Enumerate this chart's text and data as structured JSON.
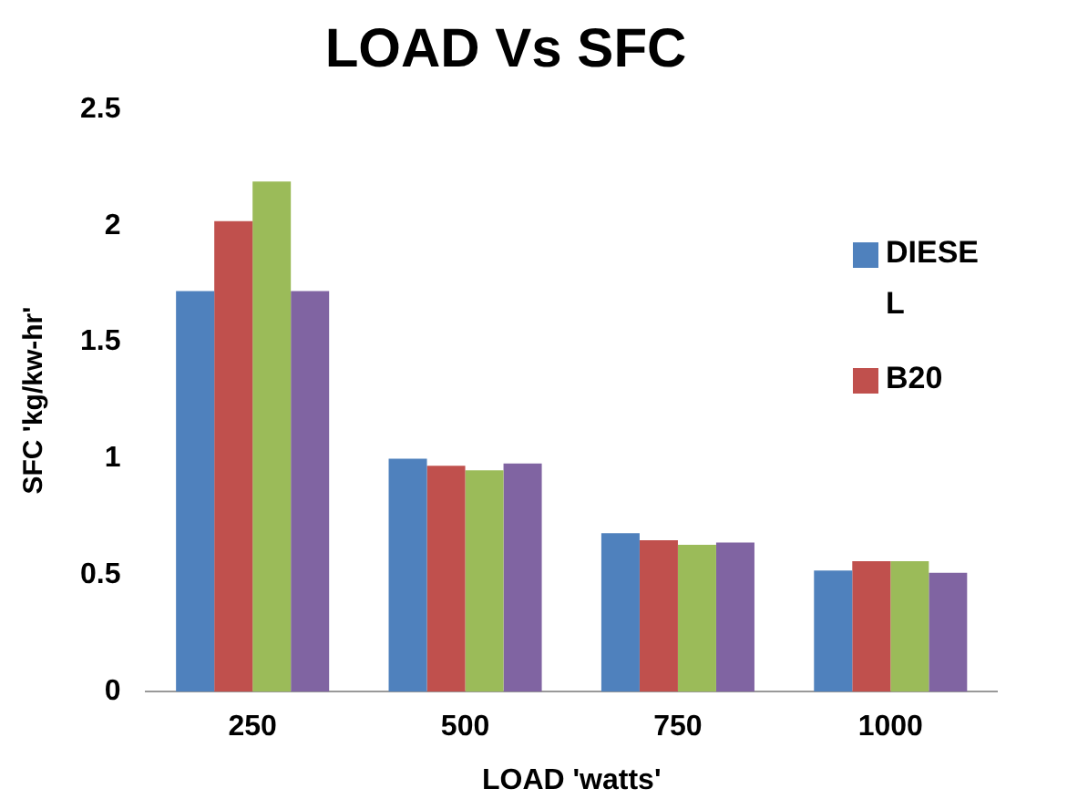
{
  "chart_data": {
    "type": "bar",
    "title": "LOAD Vs SFC",
    "xlabel": "LOAD 'watts'",
    "ylabel": "SFC 'kg/kw-hr'",
    "categories": [
      "250",
      "500",
      "750",
      "1000"
    ],
    "series": [
      {
        "name": "DIESEL",
        "color": "#4f81bd",
        "values": [
          1.72,
          1.0,
          0.68,
          0.52
        ]
      },
      {
        "name": "B20",
        "color": "#c0504d",
        "values": [
          2.02,
          0.97,
          0.65,
          0.56
        ]
      },
      {
        "color": "#9bbb59",
        "values": [
          2.19,
          0.95,
          0.63,
          0.56
        ]
      },
      {
        "color": "#8064a2",
        "values": [
          1.72,
          0.98,
          0.64,
          0.51
        ]
      }
    ],
    "ylim": [
      0,
      2.5
    ],
    "yticks": [
      0,
      0.5,
      1,
      1.5,
      2,
      2.5
    ],
    "grid": false,
    "legend": "right"
  }
}
